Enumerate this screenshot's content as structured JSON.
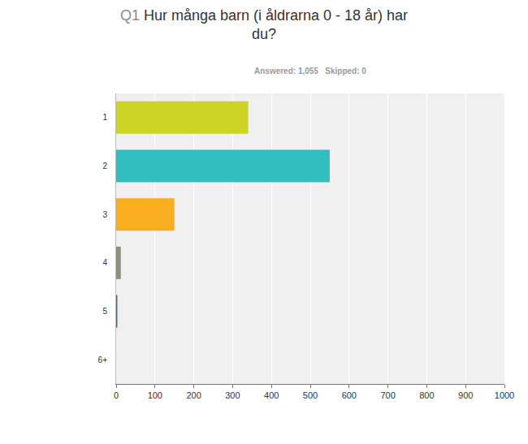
{
  "chart_data": {
    "type": "bar",
    "orientation": "horizontal",
    "title": "Q1 Hur många barn (i åldrarna 0 - 18 år) har du?",
    "subtitle": "Answered: 1,055   Skipped: 0",
    "categories": [
      "1",
      "2",
      "3",
      "4",
      "5",
      "6+"
    ],
    "values": [
      340,
      550,
      150,
      12,
      3,
      0
    ],
    "colors": [
      "#cdd425",
      "#32bec0",
      "#f7ae20",
      "#8d8e7c",
      "#336b87",
      "#9aa3a8"
    ],
    "xlim": [
      0,
      1000
    ],
    "xticks": [
      0,
      100,
      200,
      300,
      400,
      500,
      600,
      700,
      800,
      900,
      1000
    ],
    "grid": true
  }
}
